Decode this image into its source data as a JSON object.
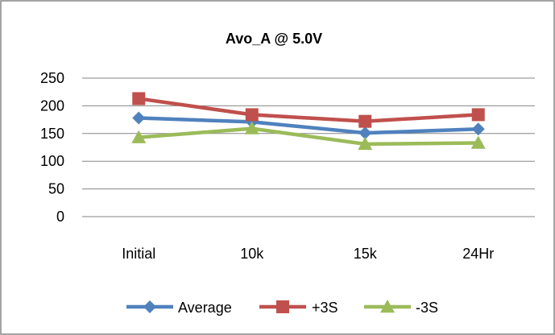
{
  "chart_data": {
    "type": "line",
    "title": "Avo_A @ 5.0V",
    "xlabel": "",
    "ylabel": "",
    "categories": [
      "Initial",
      "10k",
      "15k",
      "24Hr"
    ],
    "ylim": [
      0,
      250
    ],
    "yticks": [
      0,
      50,
      100,
      150,
      200,
      250
    ],
    "grid": true,
    "legend_position": "bottom",
    "series": [
      {
        "name": "Average",
        "values": [
          178,
          171,
          151,
          158
        ],
        "color": "#4f81bd",
        "marker": "diamond"
      },
      {
        "name": "+3S",
        "values": [
          213,
          184,
          172,
          184
        ],
        "color": "#c0504d",
        "marker": "square"
      },
      {
        "name": "-3S",
        "values": [
          143,
          159,
          131,
          133
        ],
        "color": "#9bbb59",
        "marker": "triangle"
      }
    ]
  }
}
